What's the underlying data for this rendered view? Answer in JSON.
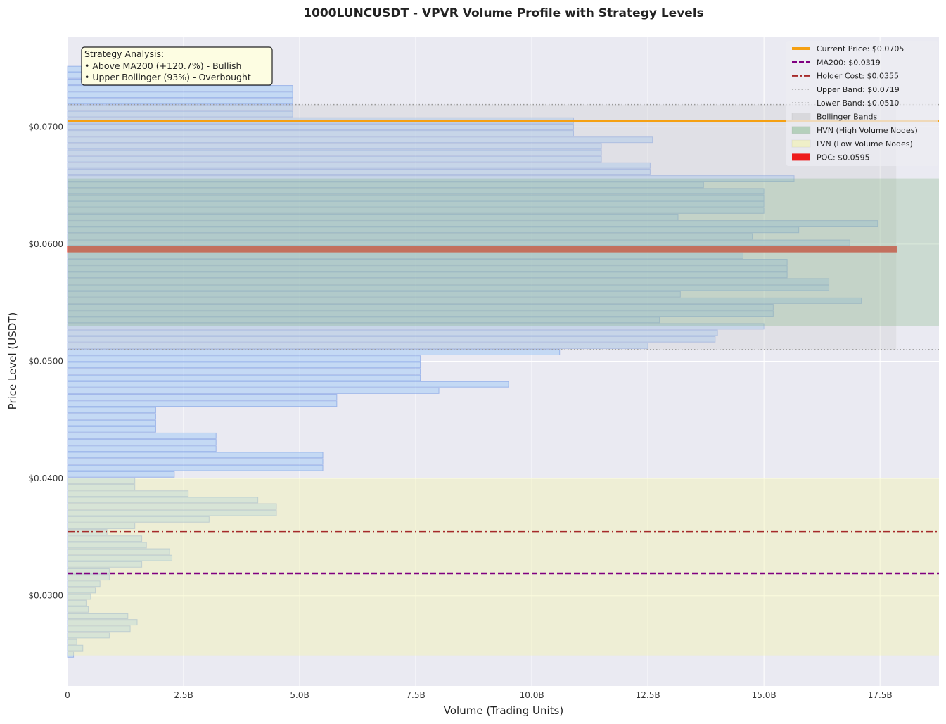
{
  "chart_data": {
    "type": "bar",
    "orientation": "horizontal",
    "title": "1000LUNCUSDT - VPVR Volume Profile with Strategy Levels",
    "xlabel": "Volume (Trading Units)",
    "ylabel": "Price Level (USDT)",
    "xlim": [
      0,
      18.77
    ],
    "x_unit": "B",
    "ylim": [
      0.0223,
      0.0777
    ],
    "grid": true,
    "x_ticks": [
      "0",
      "2.5B",
      "5.0B",
      "7.5B",
      "10.0B",
      "12.5B",
      "15.0B",
      "17.5B"
    ],
    "x_tick_values": [
      0,
      2.5,
      5,
      7.5,
      10,
      12.5,
      15,
      17.5
    ],
    "y_ticks": [
      "$0.0300",
      "$0.0400",
      "$0.0500",
      "$0.0600",
      "$0.0700"
    ],
    "y_tick_values": [
      0.03,
      0.04,
      0.05,
      0.06,
      0.07
    ],
    "price_range": {
      "top": 0.0752,
      "bottom": 0.0247
    },
    "volumes_billions_top_to_bottom": [
      2.0,
      2.0,
      2.0,
      4.85,
      4.85,
      4.85,
      4.85,
      4.85,
      10.9,
      10.9,
      10.9,
      12.6,
      11.5,
      11.5,
      11.5,
      12.55,
      12.55,
      15.65,
      13.7,
      15.0,
      15.0,
      15.0,
      15.0,
      13.15,
      17.45,
      15.75,
      14.75,
      16.85,
      17.85,
      14.55,
      15.5,
      15.5,
      15.5,
      16.4,
      16.4,
      13.2,
      17.1,
      15.2,
      15.2,
      12.75,
      15.0,
      14.0,
      13.95,
      12.5,
      10.6,
      7.6,
      7.6,
      7.6,
      7.6,
      9.5,
      8.0,
      5.8,
      5.8,
      1.9,
      1.9,
      1.9,
      1.9,
      3.2,
      3.2,
      3.2,
      5.5,
      5.5,
      5.5,
      2.3,
      1.45,
      1.45,
      2.6,
      4.1,
      4.5,
      4.5,
      3.05,
      1.45,
      0.85,
      1.6,
      1.7,
      2.2,
      2.25,
      1.6,
      0.9,
      0.9,
      0.7,
      0.6,
      0.5,
      0.4,
      0.45,
      1.3,
      1.5,
      1.35,
      0.9,
      0.2,
      0.33,
      0.13
    ],
    "poc_index": 28,
    "levels": {
      "current_price": 0.0705,
      "ma200": 0.0319,
      "holder_cost": 0.0355,
      "upper_band": 0.0719,
      "lower_band": 0.051,
      "poc": 0.0595
    },
    "zones": {
      "bollinger": [
        0.051,
        0.0719
      ],
      "hvn": [
        0.053,
        0.0656
      ],
      "lvn": [
        0.0249,
        0.04
      ]
    },
    "legend_position": "top-right",
    "legend": [
      {
        "label": "Current Price: $0.0705",
        "color": "#f5a012",
        "style": "solid"
      },
      {
        "label": "MA200: $0.0319",
        "color": "#800080",
        "style": "dashed"
      },
      {
        "label": "Holder Cost: $0.0355",
        "color": "#a52a2a",
        "style": "dashdot"
      },
      {
        "label": "Upper Band: $0.0719",
        "color": "#999999",
        "style": "dotted"
      },
      {
        "label": "Lower Band: $0.0510",
        "color": "#999999",
        "style": "dotted"
      },
      {
        "label": "Bollinger Bands",
        "color": "#d8d8dc",
        "style": "patch"
      },
      {
        "label": "HVN (High Volume Nodes)",
        "color": "#b5d0bc",
        "style": "patch"
      },
      {
        "label": "LVN (Low Volume Nodes)",
        "color": "#efefc8",
        "style": "patch"
      },
      {
        "label": "POC: $0.0595",
        "color": "#ee1c1c",
        "style": "patch"
      }
    ],
    "annotation": {
      "title": "Strategy Analysis:",
      "lines": [
        "• Above MA200 (+120.7%) - Bullish",
        "• Upper Bollinger (93%) - Overbought"
      ]
    }
  }
}
